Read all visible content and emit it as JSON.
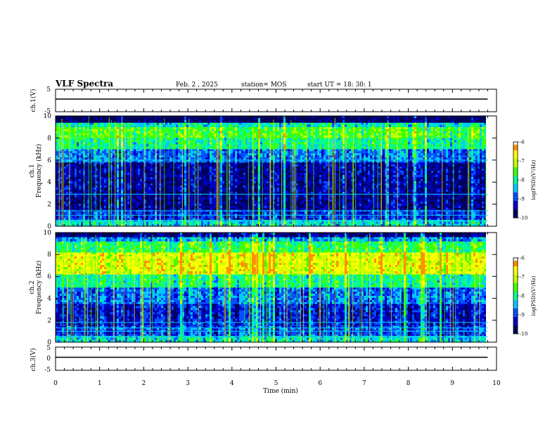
{
  "header": {
    "title": "VLF Spectra",
    "date": "Feb. 2 , 2025",
    "station": "station= MOS",
    "start": "start  UT =  18: 30: 1"
  },
  "chart_data": [
    {
      "type": "line",
      "panel": "ch1-waveform",
      "ylabel": "ch.1(V)",
      "ylim": [
        -5,
        5
      ],
      "yticks": [
        "5",
        "-5"
      ],
      "x": [
        0,
        9.8
      ],
      "values": [
        0,
        0
      ]
    },
    {
      "type": "heatmap",
      "panel": "ch1-spectrogram",
      "ylabel_line1": "ch.1",
      "ylabel_line2": "Frequency (kHz)",
      "ylim": [
        0,
        10
      ],
      "yticks": [
        "0",
        "2",
        "4",
        "6",
        "8",
        "10"
      ],
      "xlim": [
        0,
        10
      ],
      "data_end_min": 9.8,
      "colorbar": {
        "ticks": [
          "-6",
          "-7",
          "-8",
          "-9",
          "-10"
        ],
        "range": [
          -10,
          -6
        ],
        "label": "log(PSD)(V²/Hz)"
      },
      "bands": [
        {
          "f": [
            0.0,
            0.6
          ],
          "level": 0.42
        },
        {
          "f": [
            0.6,
            1.5
          ],
          "level": 0.22
        },
        {
          "f": [
            1.5,
            3.0
          ],
          "level": 0.1
        },
        {
          "f": [
            3.0,
            5.8
          ],
          "level": 0.12
        },
        {
          "f": [
            5.8,
            7.0
          ],
          "level": 0.3
        },
        {
          "f": [
            7.0,
            8.0
          ],
          "level": 0.5
        },
        {
          "f": [
            8.0,
            9.0
          ],
          "level": 0.6
        },
        {
          "f": [
            9.0,
            9.4
          ],
          "level": 0.45
        },
        {
          "f": [
            9.4,
            10.0
          ],
          "level": 0.02
        }
      ],
      "line_freqs": [
        0.5,
        1.0,
        1.4,
        2.9,
        6.0
      ]
    },
    {
      "type": "heatmap",
      "panel": "ch2-spectrogram",
      "ylabel_line1": "ch.2",
      "ylabel_line2": "Frequency (kHz)",
      "ylim": [
        0,
        10
      ],
      "yticks": [
        "0",
        "2",
        "4",
        "6",
        "8",
        "10"
      ],
      "xlim": [
        0,
        10
      ],
      "data_end_min": 9.8,
      "colorbar": {
        "ticks": [
          "-6",
          "-7",
          "-8",
          "-9",
          "-10"
        ],
        "range": [
          -10,
          -6
        ],
        "label": "log(PSD)(V²/Hz)"
      },
      "bands": [
        {
          "f": [
            0.0,
            0.6
          ],
          "level": 0.42
        },
        {
          "f": [
            0.6,
            1.5
          ],
          "level": 0.25
        },
        {
          "f": [
            1.5,
            3.5
          ],
          "level": 0.18
        },
        {
          "f": [
            3.5,
            5.0
          ],
          "level": 0.3
        },
        {
          "f": [
            5.0,
            6.2
          ],
          "level": 0.5
        },
        {
          "f": [
            6.2,
            8.2
          ],
          "level": 0.78
        },
        {
          "f": [
            8.2,
            9.2
          ],
          "level": 0.55
        },
        {
          "f": [
            9.2,
            9.6
          ],
          "level": 0.35
        },
        {
          "f": [
            9.6,
            10.0
          ],
          "level": 0.08
        }
      ],
      "line_freqs": [
        0.5,
        1.0,
        1.3,
        1.8
      ]
    },
    {
      "type": "line",
      "panel": "ch3-waveform",
      "ylabel": "ch.3(V)",
      "ylim": [
        -5,
        5
      ],
      "yticks": [
        "5",
        "0",
        "-5"
      ],
      "x": [
        0,
        9.8
      ],
      "values": [
        0,
        0
      ]
    }
  ],
  "xaxis": {
    "label": "Time (min)",
    "ticks": [
      "0",
      "1",
      "2",
      "3",
      "4",
      "5",
      "6",
      "7",
      "8",
      "9",
      "10"
    ]
  },
  "colors": {
    "colormap": [
      "#00005a",
      "#0000c8",
      "#0050ff",
      "#00c8ff",
      "#00ff90",
      "#40ff00",
      "#c0ff00",
      "#ffff00",
      "#ff9000",
      "#ff0000",
      "#e8e8e8"
    ],
    "axis": "#000000"
  }
}
